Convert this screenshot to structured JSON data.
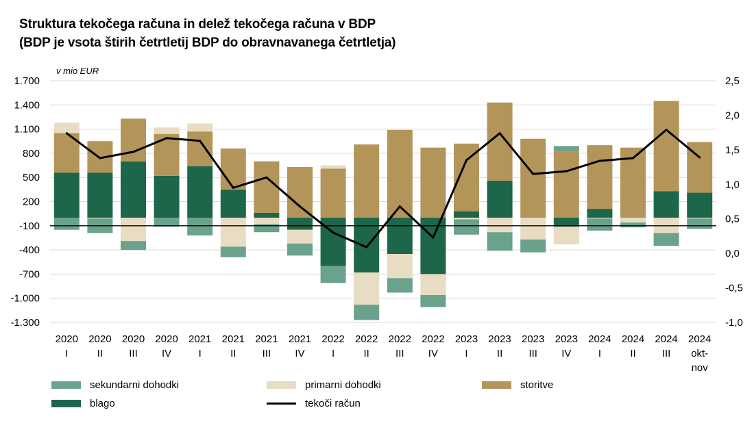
{
  "title_line1": "Struktura tekočega računa in delež tekočega računa v BDP",
  "title_line2": "(BDP je vsota štirih četrtletij BDP do obravnavanega četrtletja)",
  "colors": {
    "sekundarni": "#6aa28c",
    "primarni": "#e8dcc2",
    "storitve": "#b3955a",
    "blago": "#1d664a",
    "tekoci": "#000000"
  },
  "chart_data": {
    "type": "bar",
    "stacked": true,
    "unit_label": "v mio EUR",
    "categories": [
      [
        "2020",
        "I"
      ],
      [
        "2020",
        "II"
      ],
      [
        "2020",
        "III"
      ],
      [
        "2020",
        "IV"
      ],
      [
        "2021",
        "I"
      ],
      [
        "2021",
        "II"
      ],
      [
        "2021",
        "III"
      ],
      [
        "2021",
        "IV"
      ],
      [
        "2022",
        "I"
      ],
      [
        "2022",
        "II"
      ],
      [
        "2022",
        "III"
      ],
      [
        "2022",
        "IV"
      ],
      [
        "2023",
        "I"
      ],
      [
        "2023",
        "II"
      ],
      [
        "2023",
        "III"
      ],
      [
        "2023",
        "IV"
      ],
      [
        "2024",
        "I"
      ],
      [
        "2024",
        "II"
      ],
      [
        "2024",
        "III"
      ],
      [
        "2024",
        "okt-",
        "nov"
      ]
    ],
    "left_axis": {
      "min": -1300,
      "max": 1700,
      "ticks": [
        1700,
        1400,
        1100,
        800,
        500,
        200,
        -100,
        -400,
        -700,
        -1000,
        -1300
      ],
      "tick_labels": [
        "1.700",
        "1.400",
        "1.100",
        "800",
        "500",
        "200",
        "-100",
        "-400",
        "-700",
        "-1.000",
        "-1.300"
      ]
    },
    "right_axis": {
      "min": -1.0,
      "max": 2.5,
      "ticks": [
        2.5,
        2.0,
        1.5,
        1.0,
        0.5,
        0.0,
        -0.5,
        -1.0
      ],
      "tick_labels": [
        "2,5",
        "2,0",
        "1,5",
        "1,0",
        "0,5",
        "0,0",
        "-0,5",
        "-1,0"
      ]
    },
    "series": [
      {
        "name": "blago",
        "key": "blago",
        "values": [
          560,
          560,
          700,
          520,
          640,
          350,
          60,
          -150,
          -600,
          -680,
          -450,
          -700,
          80,
          460,
          0,
          -110,
          110,
          0,
          330,
          310
        ]
      },
      {
        "name": "storitve",
        "key": "storitve",
        "values": [
          490,
          390,
          530,
          520,
          430,
          510,
          640,
          630,
          610,
          910,
          1090,
          870,
          840,
          970,
          980,
          830,
          790,
          870,
          1120,
          630
        ]
      },
      {
        "name": "primarni dohodki",
        "key": "primarni",
        "values": [
          130,
          -10,
          -290,
          80,
          100,
          -360,
          -80,
          -170,
          40,
          -400,
          -300,
          -260,
          -20,
          -180,
          -270,
          -220,
          -10,
          -60,
          -190,
          -10
        ]
      },
      {
        "name": "sekundarni dohodki",
        "key": "sekundarni",
        "values": [
          -150,
          -180,
          -110,
          -110,
          -220,
          -130,
          -100,
          -150,
          -210,
          -190,
          -180,
          -150,
          -190,
          -230,
          -160,
          60,
          -150,
          -60,
          -160,
          -130
        ]
      },
      {
        "name": "tekoči račun",
        "key": "tekoci",
        "axis": "right",
        "type": "line",
        "values": [
          1.74,
          1.38,
          1.47,
          1.67,
          1.63,
          0.95,
          1.1,
          0.68,
          0.3,
          0.09,
          0.68,
          0.23,
          1.35,
          1.74,
          1.15,
          1.19,
          1.34,
          1.38,
          1.79,
          1.39
        ]
      }
    ]
  },
  "legend": {
    "sekundarni": "sekundarni dohodki",
    "primarni": "primarni dohodki",
    "storitve": "storitve",
    "blago": "blago",
    "tekoci": "tekoči račun"
  }
}
